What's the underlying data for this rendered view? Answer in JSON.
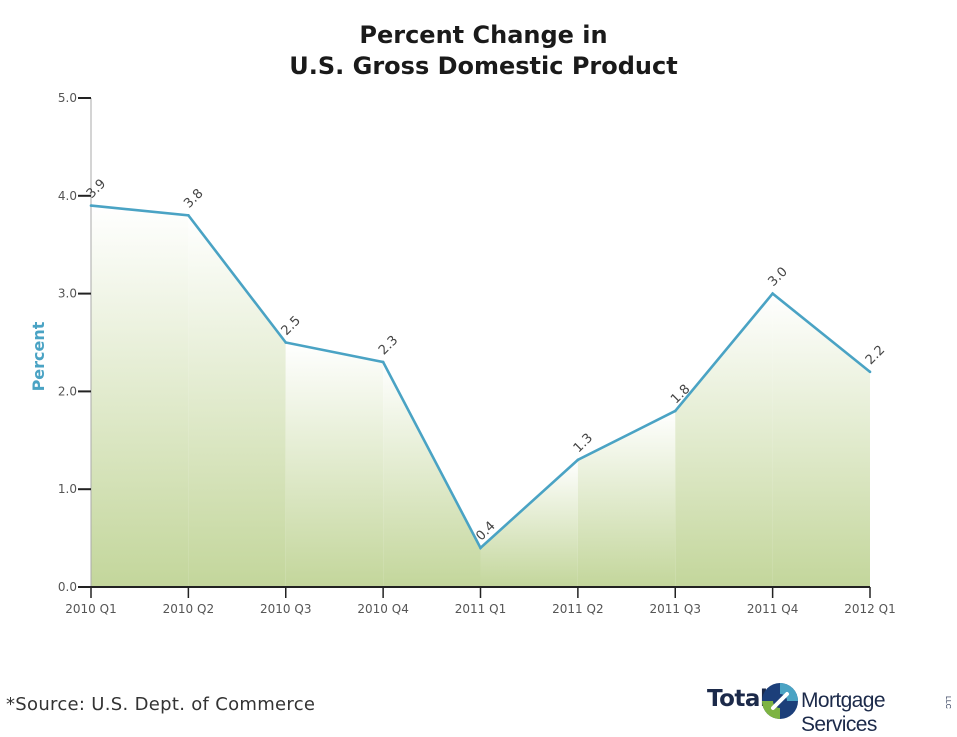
{
  "chart_data": {
    "type": "area",
    "title": [
      "Percent Change in",
      "U.S. Gross Domestic Product"
    ],
    "ylabel": "Percent",
    "xlabel": "",
    "categories": [
      "2010 Q1",
      "2010 Q2",
      "2010 Q3",
      "2010 Q4",
      "2011 Q1",
      "2011 Q2",
      "2011 Q3",
      "2011 Q4",
      "2012 Q1"
    ],
    "values": [
      3.9,
      3.8,
      2.5,
      2.3,
      0.4,
      1.3,
      1.8,
      3.0,
      2.2
    ],
    "data_labels": [
      "3.9",
      "3.8",
      "2.5",
      "2.3",
      "0.4",
      "1.3",
      "1.8",
      "3.0",
      "2.2"
    ],
    "ylim": [
      0,
      5
    ],
    "yticks": [
      "0.0",
      "1.0",
      "2.0",
      "3.0",
      "4.0",
      "5.0"
    ],
    "grid": false,
    "line_color": "#4aa3c4",
    "fill_color_top": "#ffffff",
    "fill_color_bottom": "#c3d69b",
    "ylabel_color": "#4aa3c4"
  },
  "footer": {
    "source": "*Source: U.S. Dept. of Commerce",
    "logo_total": "Total",
    "logo_rest": "Mortgage Services",
    "logo_llc": "LLC"
  }
}
